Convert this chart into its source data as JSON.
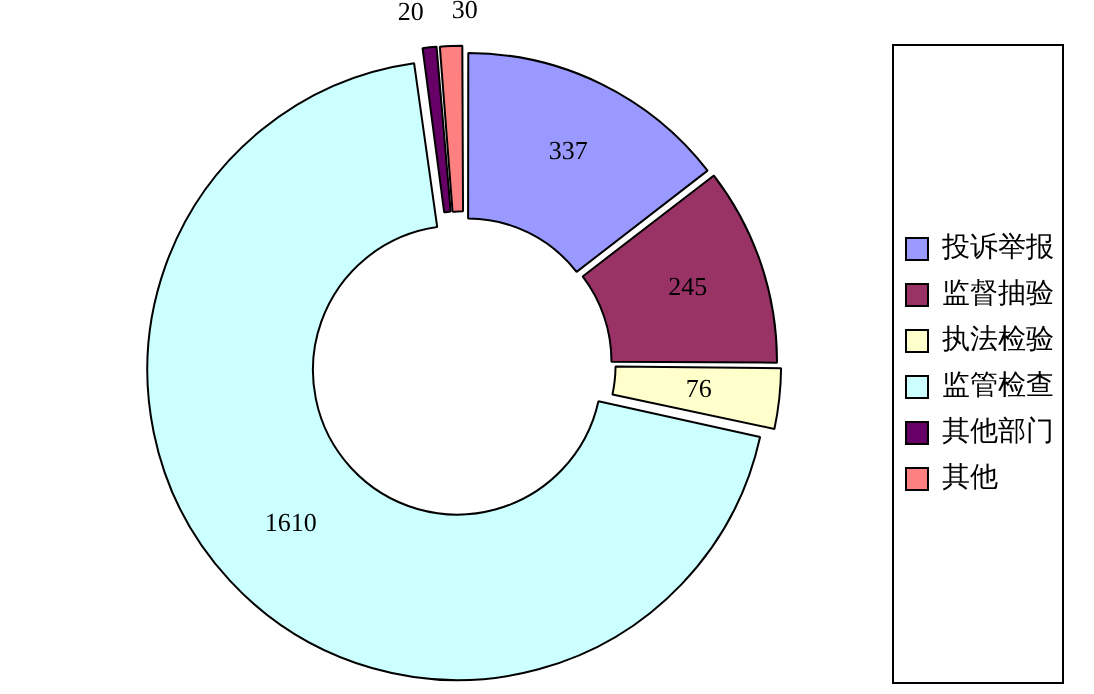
{
  "chart_data": {
    "type": "donut",
    "categories": [
      "投诉举报",
      "监督抽验",
      "执法检验",
      "监管检查",
      "其他部门",
      "其他"
    ],
    "values": [
      337,
      245,
      76,
      1610,
      20,
      30
    ],
    "colors": [
      "#9999ff",
      "#993366",
      "#ffffcc",
      "#ccffff",
      "#660066",
      "#ff8080"
    ],
    "data_labels": true,
    "legend": "right"
  }
}
